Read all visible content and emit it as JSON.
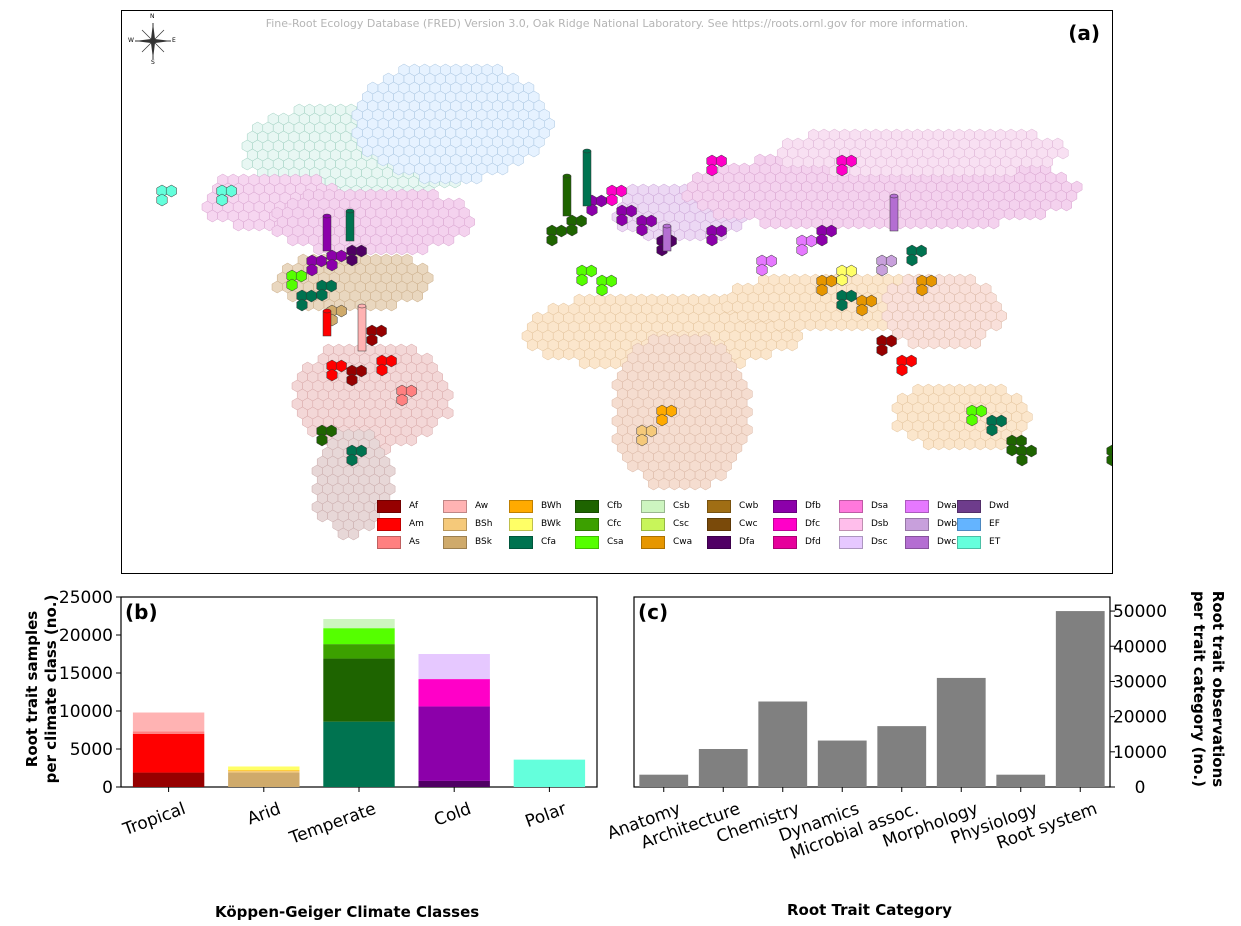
{
  "map_panel": {
    "label": "(a)",
    "credit": "Fine-Root Ecology Database (FRED) Version 3.0, Oak Ridge National Laboratory. See https://roots.ornl.gov for more information.",
    "compass": {
      "n": "N",
      "s": "S",
      "e": "E",
      "w": "W"
    },
    "legend": [
      {
        "code": "Af",
        "color": "#960000"
      },
      {
        "code": "Am",
        "color": "#ff0000"
      },
      {
        "code": "As",
        "color": "#ff8080"
      },
      {
        "code": "Aw",
        "color": "#ffb3b3"
      },
      {
        "code": "BSh",
        "color": "#f5c97a"
      },
      {
        "code": "BSk",
        "color": "#cfaa6b"
      },
      {
        "code": "BWh",
        "color": "#ffaa00"
      },
      {
        "code": "BWk",
        "color": "#ffff66"
      },
      {
        "code": "Cfa",
        "color": "#007350"
      },
      {
        "code": "Cfb",
        "color": "#1e6400"
      },
      {
        "code": "Cfc",
        "color": "#3ca000"
      },
      {
        "code": "Csa",
        "color": "#55ff00"
      },
      {
        "code": "Csb",
        "color": "#cdf5c0"
      },
      {
        "code": "Csc",
        "color": "#c8f55a"
      },
      {
        "code": "Cwa",
        "color": "#e69600"
      },
      {
        "code": "Cwb",
        "color": "#a06e14"
      },
      {
        "code": "Cwc",
        "color": "#7a4a0a"
      },
      {
        "code": "Dfa",
        "color": "#500064"
      },
      {
        "code": "Dfb",
        "color": "#8c00aa"
      },
      {
        "code": "Dfc",
        "color": "#ff00c8"
      },
      {
        "code": "Dfd",
        "color": "#e6009b"
      },
      {
        "code": "Dsa",
        "color": "#ff78dc"
      },
      {
        "code": "Dsb",
        "color": "#ffbeeb"
      },
      {
        "code": "Dsc",
        "color": "#e6c8ff"
      },
      {
        "code": "Dwa",
        "color": "#e678ff"
      },
      {
        "code": "Dwb",
        "color": "#c8a0dc"
      },
      {
        "code": "Dwc",
        "color": "#b46ed2"
      },
      {
        "code": "Dwd",
        "color": "#6e3c8c"
      },
      {
        "code": "EF",
        "color": "#64b4ff"
      },
      {
        "code": "ET",
        "color": "#64ffdc"
      }
    ]
  },
  "chart_data": [
    {
      "type": "bar",
      "panel": "(b)",
      "stacked": true,
      "xlabel": "Köppen-Geiger Climate Classes",
      "ylabel_lines": [
        "Root trait samples",
        "per climate class (no.)"
      ],
      "ylim": [
        0,
        25000
      ],
      "yticks": [
        "0",
        "5000",
        "10000",
        "15000",
        "20000",
        "25000"
      ],
      "categories": [
        "Tropical",
        "Arid",
        "Temperate",
        "Cold",
        "Polar"
      ],
      "stacks": [
        [
          {
            "code": "Af",
            "value": 1900,
            "color": "#960000"
          },
          {
            "code": "Am",
            "value": 5100,
            "color": "#ff0000"
          },
          {
            "code": "As",
            "value": 300,
            "color": "#ff8080"
          },
          {
            "code": "Aw",
            "value": 2500,
            "color": "#ffb3b3"
          }
        ],
        [
          {
            "code": "BSk",
            "value": 1900,
            "color": "#cfaa6b"
          },
          {
            "code": "BSh",
            "value": 200,
            "color": "#f5c97a"
          },
          {
            "code": "BWh",
            "value": 100,
            "color": "#ffaa00"
          },
          {
            "code": "BWk",
            "value": 500,
            "color": "#ffff66"
          }
        ],
        [
          {
            "code": "Cfa",
            "value": 8600,
            "color": "#007350"
          },
          {
            "code": "Cfb",
            "value": 8300,
            "color": "#1e6400"
          },
          {
            "code": "Cfc",
            "value": 1900,
            "color": "#3ca000"
          },
          {
            "code": "Csa",
            "value": 2100,
            "color": "#55ff00"
          },
          {
            "code": "Csb",
            "value": 1200,
            "color": "#cdf5c0"
          }
        ],
        [
          {
            "code": "Dfa",
            "value": 800,
            "color": "#500064"
          },
          {
            "code": "Dfb",
            "value": 9800,
            "color": "#8c00aa"
          },
          {
            "code": "Dfc",
            "value": 3600,
            "color": "#ff00c8"
          },
          {
            "code": "Dsc",
            "value": 3300,
            "color": "#e6c8ff"
          }
        ],
        [
          {
            "code": "ET",
            "value": 3600,
            "color": "#64ffdc"
          }
        ]
      ]
    },
    {
      "type": "bar",
      "panel": "(c)",
      "xlabel": "Root Trait Category",
      "ylabel_lines": [
        "Root trait observations",
        "per trait category (no.)"
      ],
      "ylim": [
        0,
        54000
      ],
      "yticks": [
        "0",
        "10000",
        "20000",
        "30000",
        "40000",
        "50000"
      ],
      "categories": [
        "Anatomy",
        "Architecture",
        "Chemistry",
        "Dynamics",
        "Microbial assoc.",
        "Morphology",
        "Physiology",
        "Root system"
      ],
      "values": [
        3500,
        10800,
        24300,
        13200,
        17300,
        31000,
        3500,
        50000
      ],
      "color": "#808080"
    }
  ]
}
